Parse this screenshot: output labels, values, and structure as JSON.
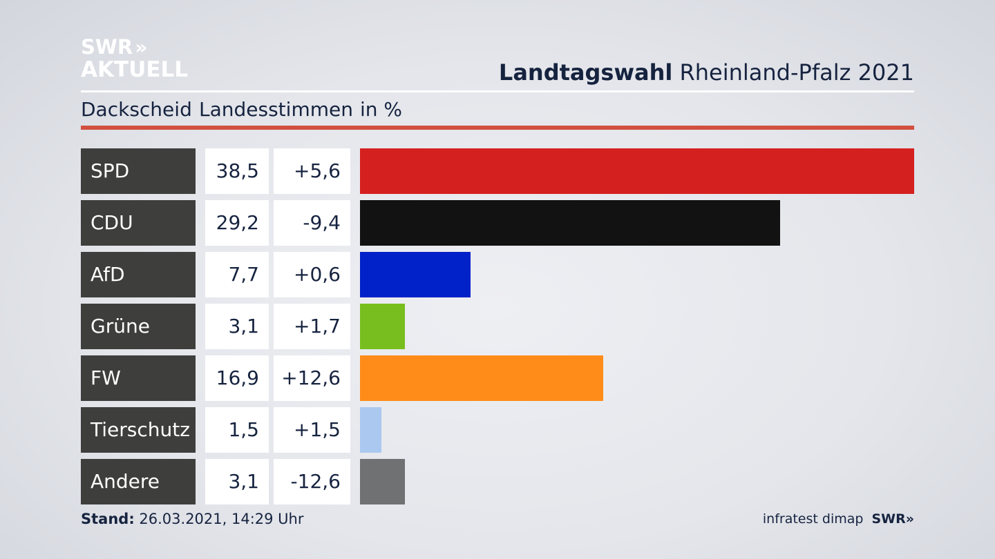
{
  "logo": {
    "line1": "SWR",
    "chevrons": "»",
    "line2": "AKTUELL"
  },
  "title": {
    "bold": "Landtagswahl",
    "rest": " Rheinland-Pfalz 2021"
  },
  "subheader": {
    "place": "Dackscheid",
    "type": "Landesstimmen",
    "unit": "in %"
  },
  "chart_data": {
    "type": "bar",
    "categories": [
      "SPD",
      "CDU",
      "AfD",
      "Grüne",
      "FW",
      "Tierschutz",
      "Andere"
    ],
    "values": [
      38.5,
      29.2,
      7.7,
      3.1,
      16.9,
      1.5,
      3.1
    ],
    "value_labels": [
      "38,5",
      "29,2",
      "7,7",
      "3,1",
      "16,9",
      "1,5",
      "3,1"
    ],
    "changes": [
      "+5,6",
      "-9,4",
      "+0,6",
      "+1,7",
      "+12,6",
      "+1,5",
      "-12,6"
    ],
    "colors": [
      "#d52020",
      "#121212",
      "#0022c8",
      "#78be1e",
      "#ff8c19",
      "#abc9f0",
      "#707173"
    ],
    "orientation": "horizontal",
    "xlim": [
      0,
      38.5
    ]
  },
  "footer": {
    "stand_label": "Stand:",
    "stand_value": " 26.03.2021, 14:29 Uhr",
    "source": "infratest dimap",
    "brand": "SWR",
    "brand_chevrons": "»"
  }
}
